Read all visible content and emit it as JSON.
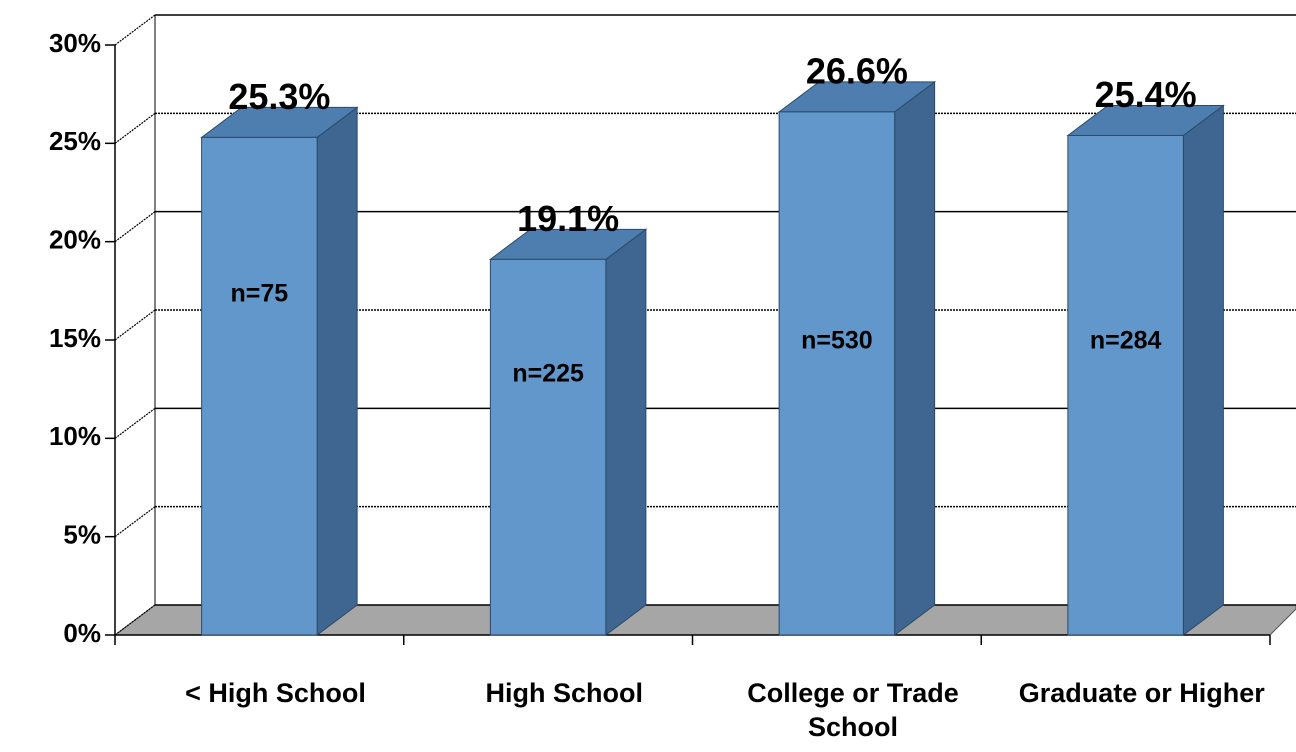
{
  "chart_data": {
    "type": "bar3d",
    "categories": [
      "< High School",
      "High School",
      "College or Trade School",
      "Graduate or Higher"
    ],
    "values": [
      25.3,
      19.1,
      26.6,
      25.4
    ],
    "value_labels": [
      "25.3%",
      "19.1%",
      "26.6%",
      "25.4%"
    ],
    "annotations": [
      "n=75",
      "n=225",
      "n=530",
      "n=284"
    ],
    "color": "#6197cb",
    "ylim": [
      0,
      30
    ],
    "yticks": [
      {
        "value": 0,
        "label": "0%"
      },
      {
        "value": 5,
        "label": "5%"
      },
      {
        "value": 10,
        "label": "10%"
      },
      {
        "value": 15,
        "label": "15%"
      },
      {
        "value": 20,
        "label": "20%"
      },
      {
        "value": 25,
        "label": "25%"
      },
      {
        "value": 30,
        "label": "30%"
      }
    ],
    "grid": true
  }
}
